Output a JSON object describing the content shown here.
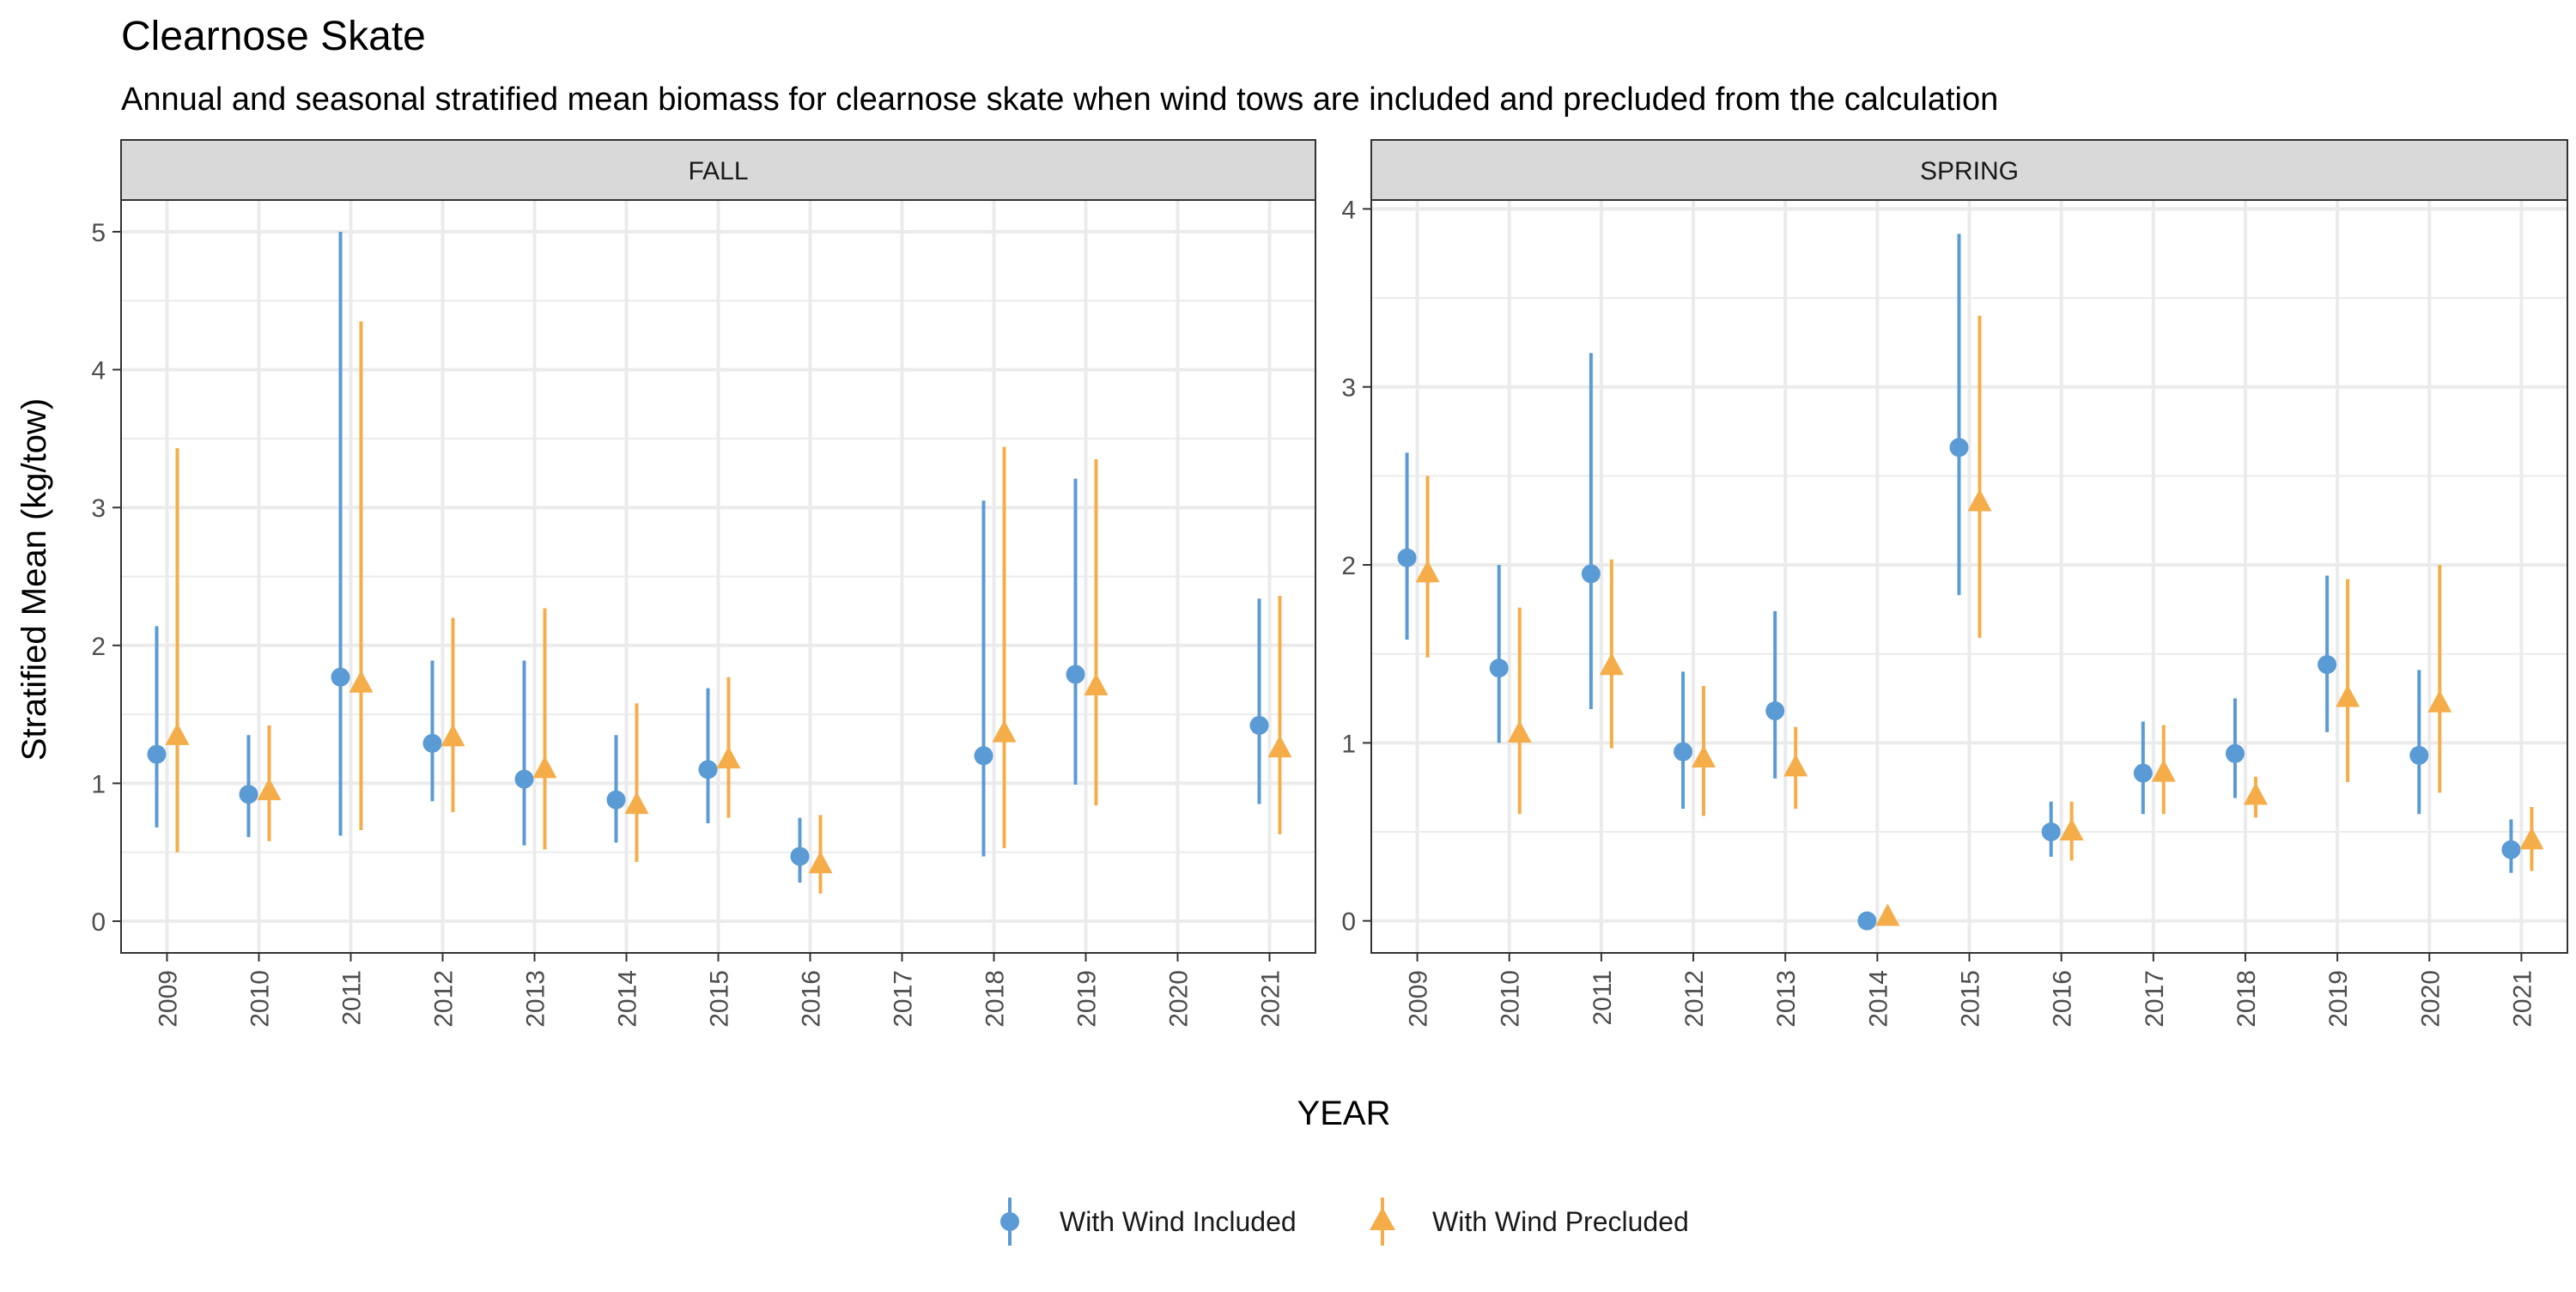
{
  "colors": {
    "included": "#5b9bd5",
    "precluded": "#f5ad4a",
    "strip_bg": "#d9d9d9",
    "grid": "#ebebeb",
    "border": "#333333"
  },
  "chart_data": {
    "type": "scatter",
    "title": "Clearnose Skate",
    "subtitle": "Annual and seasonal stratified mean biomass for clearnose skate when wind tows are included and precluded from the calculation",
    "xlabel": "YEAR",
    "ylabel": "Stratified Mean (kg/tow)",
    "legend_position": "bottom",
    "grid": true,
    "legend": [
      {
        "name": "With Wind Included",
        "marker": "circle",
        "color_key": "included"
      },
      {
        "name": "With Wind Precluded",
        "marker": "triangle",
        "color_key": "precluded"
      }
    ],
    "panels": [
      {
        "name": "FALL",
        "years": [
          "2009",
          "2010",
          "2011",
          "2012",
          "2013",
          "2014",
          "2015",
          "2016",
          "2017",
          "2018",
          "2019",
          "2020",
          "2021"
        ],
        "ylim": [
          -0.23,
          5.23
        ],
        "yticks": [
          0,
          1,
          2,
          3,
          4,
          5
        ],
        "tick_labels": [
          "0",
          "1",
          "2",
          "3",
          "4",
          "5"
        ],
        "series": [
          {
            "name": "With Wind Included",
            "points": [
              {
                "year": "2009",
                "y": 1.21,
                "low": 0.68,
                "high": 2.14
              },
              {
                "year": "2010",
                "y": 0.92,
                "low": 0.61,
                "high": 1.35
              },
              {
                "year": "2011",
                "y": 1.77,
                "low": 0.62,
                "high": 5.0
              },
              {
                "year": "2012",
                "y": 1.29,
                "low": 0.87,
                "high": 1.89
              },
              {
                "year": "2013",
                "y": 1.03,
                "low": 0.55,
                "high": 1.89
              },
              {
                "year": "2014",
                "y": 0.88,
                "low": 0.57,
                "high": 1.35
              },
              {
                "year": "2015",
                "y": 1.1,
                "low": 0.71,
                "high": 1.69
              },
              {
                "year": "2016",
                "y": 0.47,
                "low": 0.28,
                "high": 0.75
              },
              {
                "year": "2018",
                "y": 1.2,
                "low": 0.47,
                "high": 3.05
              },
              {
                "year": "2019",
                "y": 1.79,
                "low": 0.99,
                "high": 3.21
              },
              {
                "year": "2021",
                "y": 1.42,
                "low": 0.85,
                "high": 2.34
              }
            ]
          },
          {
            "name": "With Wind Precluded",
            "points": [
              {
                "year": "2009",
                "y": 1.34,
                "low": 0.5,
                "high": 3.43
              },
              {
                "year": "2010",
                "y": 0.94,
                "low": 0.58,
                "high": 1.42
              },
              {
                "year": "2011",
                "y": 1.72,
                "low": 0.66,
                "high": 4.35
              },
              {
                "year": "2012",
                "y": 1.33,
                "low": 0.79,
                "high": 2.2
              },
              {
                "year": "2013",
                "y": 1.1,
                "low": 0.52,
                "high": 2.27
              },
              {
                "year": "2014",
                "y": 0.84,
                "low": 0.43,
                "high": 1.58
              },
              {
                "year": "2015",
                "y": 1.17,
                "low": 0.75,
                "high": 1.77
              },
              {
                "year": "2016",
                "y": 0.41,
                "low": 0.2,
                "high": 0.77
              },
              {
                "year": "2018",
                "y": 1.36,
                "low": 0.53,
                "high": 3.44
              },
              {
                "year": "2019",
                "y": 1.7,
                "low": 0.84,
                "high": 3.35
              },
              {
                "year": "2021",
                "y": 1.25,
                "low": 0.63,
                "high": 2.36
              }
            ]
          }
        ]
      },
      {
        "name": "SPRING",
        "years": [
          "2009",
          "2010",
          "2011",
          "2012",
          "2013",
          "2014",
          "2015",
          "2016",
          "2017",
          "2018",
          "2019",
          "2020",
          "2021"
        ],
        "ylim": [
          -0.18,
          4.05
        ],
        "yticks": [
          0,
          1,
          2,
          3,
          4
        ],
        "tick_labels": [
          "0",
          "1",
          "2",
          "3",
          "4"
        ],
        "series": [
          {
            "name": "With Wind Included",
            "points": [
              {
                "year": "2009",
                "y": 2.04,
                "low": 1.58,
                "high": 2.63
              },
              {
                "year": "2010",
                "y": 1.42,
                "low": 1.0,
                "high": 2.0
              },
              {
                "year": "2011",
                "y": 1.95,
                "low": 1.19,
                "high": 3.19
              },
              {
                "year": "2012",
                "y": 0.95,
                "low": 0.63,
                "high": 1.4
              },
              {
                "year": "2013",
                "y": 1.18,
                "low": 0.8,
                "high": 1.74
              },
              {
                "year": "2014",
                "y": 0.0,
                "low": 0.0,
                "high": 0.0
              },
              {
                "year": "2015",
                "y": 2.66,
                "low": 1.83,
                "high": 3.86
              },
              {
                "year": "2016",
                "y": 0.5,
                "low": 0.36,
                "high": 0.67
              },
              {
                "year": "2017",
                "y": 0.83,
                "low": 0.6,
                "high": 1.12
              },
              {
                "year": "2018",
                "y": 0.94,
                "low": 0.69,
                "high": 1.25
              },
              {
                "year": "2019",
                "y": 1.44,
                "low": 1.06,
                "high": 1.94
              },
              {
                "year": "2020",
                "y": 0.93,
                "low": 0.6,
                "high": 1.41
              },
              {
                "year": "2021",
                "y": 0.4,
                "low": 0.27,
                "high": 0.57
              }
            ]
          },
          {
            "name": "With Wind Precluded",
            "points": [
              {
                "year": "2009",
                "y": 1.95,
                "low": 1.48,
                "high": 2.5
              },
              {
                "year": "2010",
                "y": 1.05,
                "low": 0.6,
                "high": 1.76
              },
              {
                "year": "2011",
                "y": 1.43,
                "low": 0.97,
                "high": 2.03
              },
              {
                "year": "2012",
                "y": 0.91,
                "low": 0.59,
                "high": 1.32
              },
              {
                "year": "2013",
                "y": 0.86,
                "low": 0.63,
                "high": 1.09
              },
              {
                "year": "2014",
                "y": 0.02,
                "low": 0.0,
                "high": 0.03
              },
              {
                "year": "2015",
                "y": 2.35,
                "low": 1.59,
                "high": 3.4
              },
              {
                "year": "2016",
                "y": 0.5,
                "low": 0.34,
                "high": 0.67
              },
              {
                "year": "2017",
                "y": 0.83,
                "low": 0.6,
                "high": 1.1
              },
              {
                "year": "2018",
                "y": 0.7,
                "low": 0.58,
                "high": 0.81
              },
              {
                "year": "2019",
                "y": 1.25,
                "low": 0.78,
                "high": 1.92
              },
              {
                "year": "2020",
                "y": 1.22,
                "low": 0.72,
                "high": 2.0
              },
              {
                "year": "2021",
                "y": 0.45,
                "low": 0.28,
                "high": 0.64
              }
            ]
          }
        ]
      }
    ]
  }
}
